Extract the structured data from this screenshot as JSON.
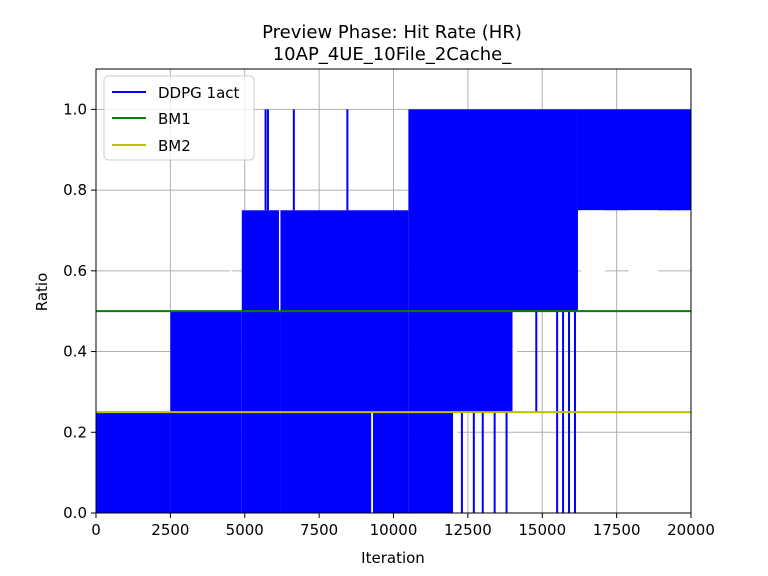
{
  "chart_data": {
    "type": "line",
    "title": "Preview Phase: Hit Rate (HR)",
    "subtitle": "10AP_4UE_10File_2Cache_",
    "xlabel": "Iteration",
    "ylabel": "Ratio",
    "xlim": [
      0,
      20000
    ],
    "ylim": [
      0,
      1.1
    ],
    "xticks": [
      0,
      2500,
      5000,
      7500,
      10000,
      12500,
      15000,
      17500,
      20000
    ],
    "yticks": [
      0.0,
      0.2,
      0.4,
      0.6,
      0.8,
      1.0
    ],
    "xtick_labels": [
      "0",
      "2500",
      "5000",
      "7500",
      "10000",
      "12500",
      "15000",
      "17500",
      "20000"
    ],
    "ytick_labels": [
      "0.0",
      "0.2",
      "0.4",
      "0.6",
      "0.8",
      "1.0"
    ],
    "grid": true,
    "legend_position": "top-left",
    "series": [
      {
        "name": "DDPG 1act",
        "color": "#0000ff",
        "description_bands": [
          {
            "x_start": 0,
            "x_end": 2500,
            "low": 0.0,
            "high": 0.25
          },
          {
            "x_start": 2500,
            "x_end": 4900,
            "low": 0.0,
            "high": 0.5
          },
          {
            "x_start": 4900,
            "x_end": 6200,
            "low": 0.0,
            "high": 0.75
          },
          {
            "x_start": 6200,
            "x_end": 10500,
            "low": 0.0,
            "high": 0.75
          },
          {
            "x_start": 10500,
            "x_end": 12000,
            "low": 0.0,
            "high": 1.0
          },
          {
            "x_start": 12000,
            "x_end": 14000,
            "low": 0.25,
            "high": 1.0
          },
          {
            "x_start": 14000,
            "x_end": 16200,
            "low": 0.5,
            "high": 1.0
          },
          {
            "x_start": 16200,
            "x_end": 20000,
            "low": 0.75,
            "high": 1.0
          }
        ],
        "spikes": [
          {
            "x": 5700,
            "low": 0.75,
            "high": 1.0
          },
          {
            "x": 5780,
            "low": 0.75,
            "high": 1.0
          },
          {
            "x": 6650,
            "low": 0.75,
            "high": 1.0
          },
          {
            "x": 8450,
            "low": 0.75,
            "high": 1.0
          },
          {
            "x": 3100,
            "low": 0.25,
            "high": 0.5
          },
          {
            "x": 3300,
            "low": 0.25,
            "high": 0.5
          },
          {
            "x": 3800,
            "low": 0.25,
            "high": 0.5
          },
          {
            "x": 9200,
            "low": 0.0,
            "high": 0.25
          },
          {
            "x": 10000,
            "low": 0.0,
            "high": 0.25
          },
          {
            "x": 12300,
            "low": 0.0,
            "high": 0.25
          },
          {
            "x": 12700,
            "low": 0.0,
            "high": 0.25
          },
          {
            "x": 13000,
            "low": 0.0,
            "high": 0.25
          },
          {
            "x": 13400,
            "low": 0.0,
            "high": 0.25
          },
          {
            "x": 13800,
            "low": 0.0,
            "high": 0.25
          },
          {
            "x": 14800,
            "low": 0.25,
            "high": 0.5
          },
          {
            "x": 15500,
            "low": 0.0,
            "high": 0.5
          },
          {
            "x": 15700,
            "low": 0.0,
            "high": 0.5
          },
          {
            "x": 15900,
            "low": 0.0,
            "high": 0.5
          },
          {
            "x": 16100,
            "low": 0.0,
            "high": 0.5
          },
          {
            "x": 19000,
            "low": 0.75,
            "high": 1.0
          },
          {
            "x": 19300,
            "low": 0.75,
            "high": 1.0
          },
          {
            "x": 19600,
            "low": 0.75,
            "high": 1.0
          }
        ]
      },
      {
        "name": "BM1",
        "color": "#008000",
        "x": [
          0,
          20000
        ],
        "y": [
          0.5,
          0.5
        ]
      },
      {
        "name": "BM2",
        "color": "#bfbf00",
        "x": [
          0,
          20000
        ],
        "y": [
          0.25,
          0.25
        ]
      }
    ]
  }
}
